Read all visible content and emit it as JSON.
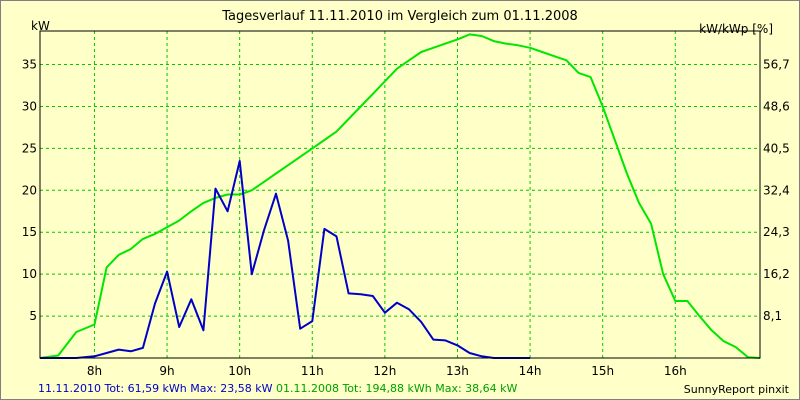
{
  "header": {
    "title": "Tagesverlauf 11.11.2010 im Vergleich zum 01.11.2008",
    "left_unit": "kW",
    "right_unit": "kW/kWp [%]"
  },
  "footer": {
    "series_a_text": "11.11.2010 Tot: 61,59 kWh Max: 23,58 kW",
    "series_b_text": "01.11.2008 Tot: 194,88 kWh Max: 38,64 kW",
    "brand": "SunnyReport pinxit"
  },
  "chart_data": {
    "type": "line",
    "title": "Tagesverlauf 11.11.2010 im Vergleich zum 01.11.2008",
    "xlabel": "",
    "ylabel": "kW",
    "y2label": "kW/kWp [%]",
    "xlim": [
      7.25,
      17.1667
    ],
    "ylim": [
      0,
      39
    ],
    "grid": true,
    "x_ticks": [
      8,
      9,
      10,
      11,
      12,
      13,
      14,
      15,
      16
    ],
    "x_tick_labels": [
      "8h",
      "9h",
      "10h",
      "11h",
      "12h",
      "13h",
      "14h",
      "15h",
      "16h"
    ],
    "y_ticks": [
      5,
      10,
      15,
      20,
      25,
      30,
      35
    ],
    "y_tick_labels": [
      "5",
      "10",
      "15",
      "20",
      "25",
      "30",
      "35"
    ],
    "y2_ticks": [
      5,
      10,
      15,
      20,
      25,
      30,
      35
    ],
    "y2_tick_labels": [
      "8,1",
      "16,2",
      "24,3",
      "32,4",
      "40,5",
      "48,6",
      "56,7"
    ],
    "series": [
      {
        "name": "01.11.2008",
        "color": "#00e600",
        "x": [
          7.25,
          7.5,
          7.75,
          8.0,
          8.1667,
          8.3333,
          8.5,
          8.6667,
          8.8333,
          9.0,
          9.1667,
          9.3333,
          9.5,
          9.6667,
          9.8333,
          10.0,
          10.1667,
          10.3333,
          10.5,
          10.6667,
          10.8333,
          11.0,
          11.1667,
          11.3333,
          11.5,
          11.6667,
          11.8333,
          12.0,
          12.1667,
          12.3333,
          12.5,
          12.6667,
          12.8333,
          13.0,
          13.1667,
          13.3333,
          13.5,
          13.6667,
          13.8333,
          14.0,
          14.1667,
          14.3333,
          14.5,
          14.6667,
          14.8333,
          15.0,
          15.1667,
          15.3333,
          15.5,
          15.6667,
          15.8333,
          16.0,
          16.1667,
          16.3333,
          16.5,
          16.6667,
          16.8333,
          17.0,
          17.1667
        ],
        "values": [
          0,
          0.3,
          3.1,
          4.0,
          10.8,
          12.3,
          13.0,
          14.2,
          14.8,
          15.6,
          16.4,
          17.5,
          18.5,
          19.1,
          19.5,
          19.5,
          20.0,
          21.0,
          22.0,
          23.0,
          24.0,
          25.0,
          26.0,
          27.0,
          28.5,
          30.0,
          31.5,
          33.0,
          34.5,
          35.5,
          36.5,
          37.0,
          37.5,
          38.0,
          38.6,
          38.4,
          37.8,
          37.5,
          37.3,
          37.0,
          36.5,
          36.0,
          35.5,
          34.0,
          33.5,
          30.0,
          26.0,
          22.0,
          18.5,
          16.0,
          10.0,
          6.8,
          6.8,
          5.0,
          3.3,
          2.0,
          1.3,
          0.1,
          0
        ],
        "note": ""
      },
      {
        "name": "11.11.2010",
        "color": "#0000c8",
        "values": [
          0,
          0,
          0,
          0.2,
          0.6,
          1.0,
          0.8,
          1.2,
          6.5,
          10.3,
          3.7,
          7.0,
          3.3,
          20.2,
          17.5,
          23.5,
          10.0,
          15.2,
          19.6,
          14.0,
          3.5,
          4.4,
          15.4,
          14.5,
          7.7,
          7.6,
          7.4,
          5.4,
          6.6,
          5.8,
          4.3,
          2.2,
          2.1,
          1.5,
          0.6,
          0.2,
          0,
          0,
          0,
          0
        ],
        "x": [
          7.25,
          7.5,
          7.75,
          8.0,
          8.1667,
          8.3333,
          8.5,
          8.6667,
          8.8333,
          9.0,
          9.1667,
          9.3333,
          9.5,
          9.6667,
          9.8333,
          10.0,
          10.1667,
          10.3333,
          10.5,
          10.6667,
          10.8333,
          11.0,
          11.1667,
          11.3333,
          11.5,
          11.6667,
          11.8333,
          12.0,
          12.1667,
          12.3333,
          12.5,
          12.6667,
          12.8333,
          13.0,
          13.1667,
          13.3333,
          13.5,
          13.6667,
          13.8333,
          14.0
        ]
      }
    ]
  }
}
